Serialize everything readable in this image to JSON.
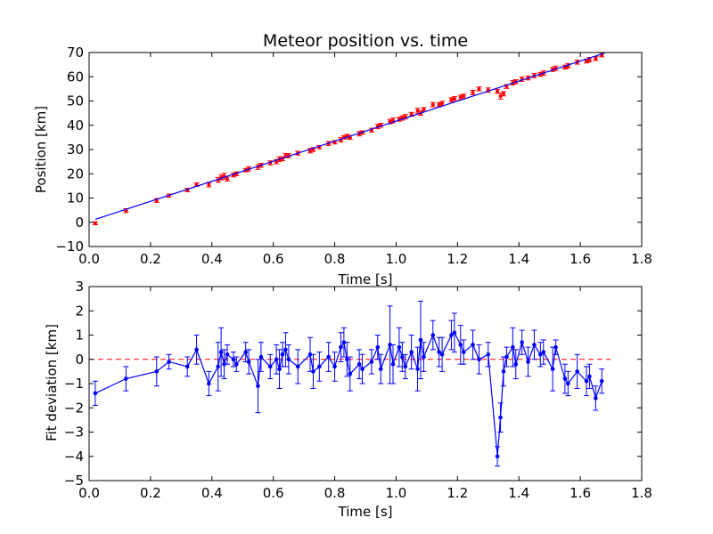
{
  "colors": {
    "fit_line": "#0000ff",
    "measured_points": "#ff0000",
    "deviation_series": "#0000ff",
    "zero_line": "#ff0000",
    "background": "#ffffff",
    "axes": "#000000"
  },
  "chart_data": [
    {
      "type": "scatter",
      "title": "Meteor position vs. time",
      "xlabel": "Time [s]",
      "ylabel": "Position [km]",
      "xlim": [
        0.0,
        1.8
      ],
      "ylim": [
        -10,
        70
      ],
      "xticks": [
        "0.0",
        "0.2",
        "0.4",
        "0.6",
        "0.8",
        "1.0",
        "1.2",
        "1.4",
        "1.6",
        "1.8"
      ],
      "yticks": [
        "−10",
        "0",
        "10",
        "20",
        "30",
        "40",
        "50",
        "60",
        "70"
      ],
      "grid": false,
      "fit_line": {
        "x": [
          0.02,
          1.68
        ],
        "y": [
          1.2,
          69.8
        ]
      },
      "points": {
        "x": [
          0.02,
          0.12,
          0.22,
          0.26,
          0.32,
          0.35,
          0.39,
          0.42,
          0.43,
          0.44,
          0.45,
          0.47,
          0.48,
          0.51,
          0.52,
          0.55,
          0.56,
          0.59,
          0.61,
          0.62,
          0.63,
          0.64,
          0.65,
          0.68,
          0.72,
          0.73,
          0.75,
          0.78,
          0.8,
          0.82,
          0.83,
          0.84,
          0.85,
          0.88,
          0.89,
          0.92,
          0.94,
          0.95,
          0.98,
          0.99,
          1.01,
          1.02,
          1.03,
          1.05,
          1.07,
          1.08,
          1.09,
          1.12,
          1.14,
          1.15,
          1.18,
          1.19,
          1.21,
          1.22,
          1.25,
          1.27,
          1.3,
          1.33,
          1.34,
          1.35,
          1.36,
          1.38,
          1.39,
          1.41,
          1.43,
          1.45,
          1.47,
          1.48,
          1.51,
          1.52,
          1.55,
          1.56,
          1.59,
          1.62,
          1.63,
          1.65,
          1.67
        ],
        "y": [
          -0.4,
          4.8,
          9.0,
          11.0,
          13.3,
          15.5,
          15.5,
          17.5,
          18.5,
          19.0,
          18.0,
          19.5,
          20.0,
          21.5,
          22.0,
          22.8,
          23.5,
          24.5,
          25.0,
          26.0,
          26.2,
          27.5,
          27.5,
          28.5,
          29.5,
          30.0,
          31.0,
          32.5,
          33.0,
          34.0,
          35.0,
          35.5,
          35.0,
          36.5,
          37.0,
          38.0,
          39.5,
          40.0,
          41.5,
          42.0,
          42.5,
          43.0,
          43.5,
          44.5,
          46.0,
          45.0,
          46.5,
          48.5,
          48.5,
          49.0,
          50.5,
          51.0,
          51.5,
          52.0,
          53.5,
          55.0,
          54.5,
          54.0,
          52.0,
          53.0,
          56.0,
          57.5,
          58.0,
          59.0,
          59.5,
          60.5,
          61.0,
          61.5,
          63.0,
          63.5,
          64.0,
          64.5,
          66.0,
          66.5,
          67.0,
          67.5,
          69.0
        ],
        "yerr": [
          0.6,
          0.8,
          0.8,
          0.6,
          0.7,
          0.7,
          0.9,
          1.0,
          1.0,
          1.2,
          1.0,
          0.8,
          0.8,
          0.7,
          0.9,
          1.0,
          0.8,
          0.8,
          0.9,
          1.0,
          0.8,
          0.9,
          0.8,
          0.8,
          0.9,
          0.8,
          0.7,
          0.8,
          0.7,
          0.9,
          0.7,
          0.8,
          0.8,
          0.9,
          0.7,
          0.8,
          0.9,
          0.8,
          0.9,
          1.0,
          0.8,
          0.9,
          0.9,
          0.8,
          1.0,
          0.9,
          0.8,
          0.9,
          0.8,
          0.9,
          0.8,
          0.8,
          0.9,
          0.8,
          0.9,
          0.8,
          0.9,
          0.8,
          1.2,
          0.9,
          0.8,
          0.9,
          0.8,
          0.9,
          0.8,
          0.9,
          0.8,
          0.9,
          0.8,
          0.9,
          0.8,
          0.9,
          0.8,
          0.8,
          0.9,
          0.8,
          0.8
        ]
      }
    },
    {
      "type": "line",
      "xlabel": "Time [s]",
      "ylabel": "Fit deviation [km]",
      "xlim": [
        0.0,
        1.8
      ],
      "ylim": [
        -5,
        3
      ],
      "xticks": [
        "0.0",
        "0.2",
        "0.4",
        "0.6",
        "0.8",
        "1.0",
        "1.2",
        "1.4",
        "1.6",
        "1.8"
      ],
      "yticks": [
        "−5",
        "−4",
        "−3",
        "−2",
        "−1",
        "0",
        "1",
        "2",
        "3"
      ],
      "grid": false,
      "reference_line": {
        "x": [
          0.0,
          1.7
        ],
        "y": 0.0
      },
      "series": [
        {
          "x": [
            0.02,
            0.12,
            0.22,
            0.26,
            0.32,
            0.35,
            0.39,
            0.42,
            0.43,
            0.44,
            0.45,
            0.47,
            0.48,
            0.51,
            0.52,
            0.55,
            0.56,
            0.59,
            0.61,
            0.62,
            0.63,
            0.64,
            0.65,
            0.68,
            0.72,
            0.73,
            0.75,
            0.78,
            0.8,
            0.82,
            0.83,
            0.84,
            0.85,
            0.88,
            0.89,
            0.92,
            0.94,
            0.95,
            0.98,
            0.99,
            1.01,
            1.02,
            1.03,
            1.05,
            1.07,
            1.08,
            1.09,
            1.12,
            1.14,
            1.15,
            1.18,
            1.19,
            1.21,
            1.22,
            1.25,
            1.27,
            1.3,
            1.33,
            1.34,
            1.35,
            1.36,
            1.38,
            1.39,
            1.41,
            1.43,
            1.45,
            1.47,
            1.48,
            1.51,
            1.52,
            1.55,
            1.56,
            1.59,
            1.62,
            1.63,
            1.65,
            1.67
          ],
          "y": [
            -1.4,
            -0.8,
            -0.5,
            -0.1,
            -0.3,
            0.4,
            -1.0,
            -0.3,
            0.3,
            -0.2,
            0.2,
            0.0,
            -0.2,
            0.3,
            -0.1,
            -1.1,
            0.1,
            -0.3,
            0.0,
            -0.4,
            0.2,
            0.4,
            0.0,
            -0.3,
            0.2,
            -0.5,
            -0.3,
            0.1,
            -0.3,
            0.5,
            0.7,
            0.0,
            -0.6,
            -0.2,
            -0.4,
            -0.1,
            0.5,
            -0.4,
            0.6,
            -0.2,
            0.5,
            0.1,
            -0.3,
            0.3,
            -0.4,
            0.8,
            0.1,
            1.0,
            0.3,
            0.2,
            1.0,
            1.1,
            0.6,
            0.3,
            0.6,
            0.0,
            0.2,
            -4.0,
            -2.4,
            -0.5,
            0.1,
            0.5,
            -0.2,
            0.7,
            -0.1,
            0.6,
            0.2,
            0.3,
            -0.4,
            0.5,
            -0.8,
            -1.0,
            -0.5,
            -0.9,
            -0.7,
            -1.6,
            -0.9
          ],
          "yerr": [
            0.5,
            0.5,
            0.6,
            0.3,
            0.4,
            0.6,
            0.5,
            1.0,
            1.0,
            0.6,
            0.4,
            0.3,
            0.3,
            0.4,
            0.5,
            1.1,
            0.6,
            0.5,
            0.6,
            0.8,
            0.5,
            0.7,
            0.6,
            0.7,
            0.7,
            0.7,
            0.6,
            0.6,
            0.6,
            0.6,
            0.6,
            0.7,
            0.7,
            0.6,
            0.6,
            0.5,
            0.5,
            0.6,
            1.6,
            0.8,
            0.8,
            0.6,
            0.5,
            0.7,
            0.9,
            1.6,
            0.6,
            0.6,
            0.6,
            0.7,
            0.6,
            0.8,
            0.8,
            0.5,
            0.6,
            0.6,
            0.5,
            0.4,
            0.6,
            0.6,
            0.4,
            0.8,
            0.6,
            0.5,
            0.6,
            0.6,
            0.5,
            0.5,
            0.9,
            0.3,
            0.6,
            0.5,
            0.7,
            0.6,
            0.5,
            0.5,
            0.5
          ]
        }
      ]
    }
  ]
}
